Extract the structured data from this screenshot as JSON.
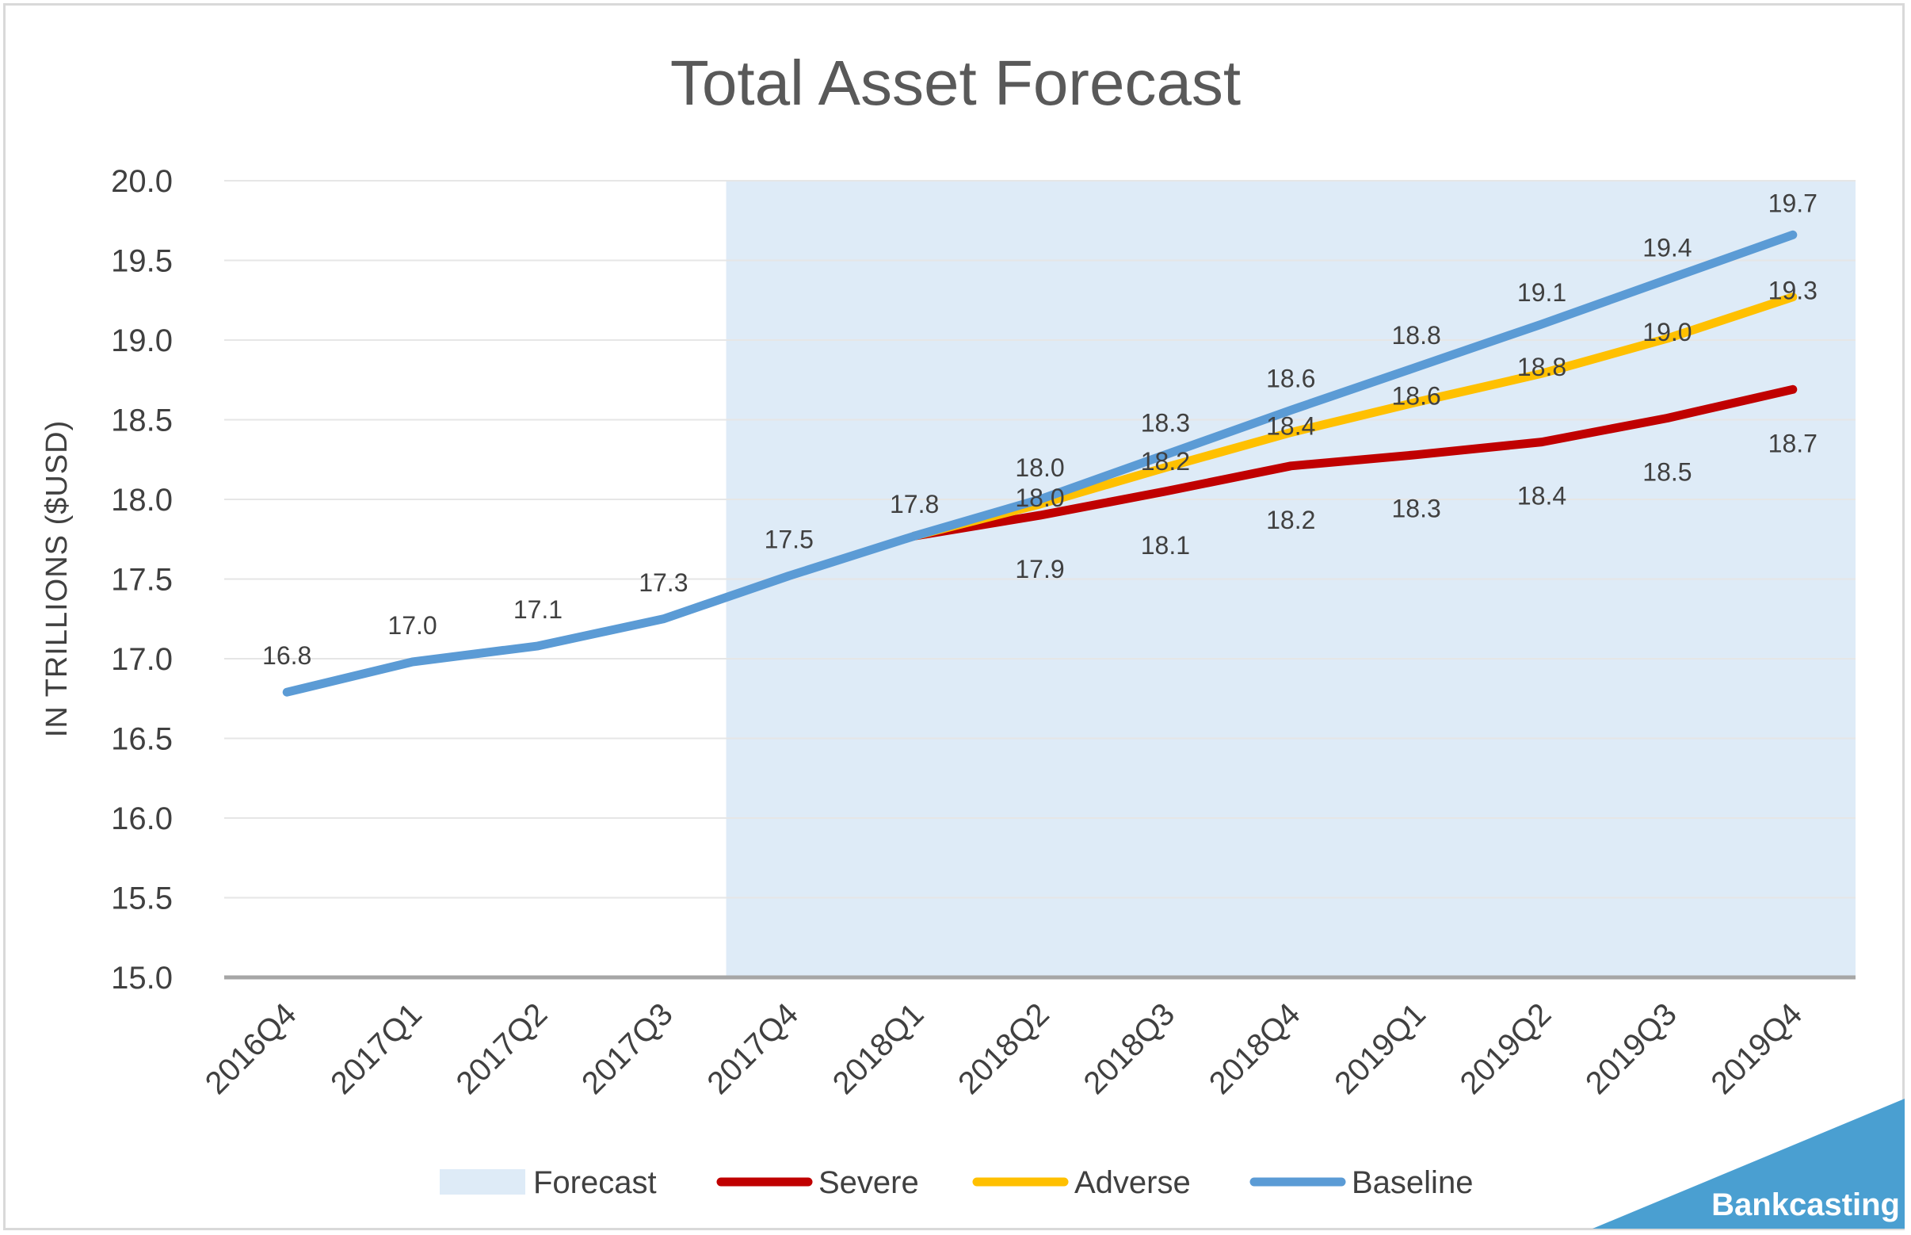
{
  "chart_data": {
    "type": "line",
    "title": "Total Asset Forecast",
    "ylabel": "IN TRILLIONS ($USD)",
    "xlabel": "",
    "ylim": [
      15.0,
      20.0
    ],
    "yticks": [
      "15.0",
      "15.5",
      "16.0",
      "16.5",
      "17.0",
      "17.5",
      "18.0",
      "18.5",
      "19.0",
      "19.5",
      "20.0"
    ],
    "categories": [
      "2016Q4",
      "2017Q1",
      "2017Q2",
      "2017Q3",
      "2017Q4",
      "2018Q1",
      "2018Q2",
      "2018Q3",
      "2018Q4",
      "2019Q1",
      "2019Q2",
      "2019Q3",
      "2019Q4"
    ],
    "grid": true,
    "legend_position": "bottom",
    "forecast_region": {
      "label": "Forecast",
      "start": "2017Q4",
      "end": "2019Q4",
      "color": "#deebf7"
    },
    "series": [
      {
        "name": "Severe",
        "color": "#c00000",
        "values": [
          null,
          null,
          null,
          null,
          null,
          17.77,
          17.9,
          18.05,
          18.21,
          18.28,
          18.36,
          18.51,
          18.69
        ],
        "labels": [
          "",
          "",
          "",
          "",
          "",
          "",
          "17.9",
          "18.1",
          "18.2",
          "18.3",
          "18.4",
          "18.5",
          "18.7"
        ]
      },
      {
        "name": "Adverse",
        "color": "#ffc000",
        "values": [
          null,
          null,
          null,
          null,
          null,
          17.77,
          17.97,
          18.2,
          18.42,
          18.61,
          18.79,
          19.01,
          19.27
        ],
        "labels": [
          "",
          "",
          "",
          "",
          "",
          "",
          "18.0",
          "18.2",
          "18.4",
          "18.6",
          "18.8",
          "19.0",
          "19.3"
        ]
      },
      {
        "name": "Baseline",
        "color": "#5b9bd5",
        "values": [
          16.79,
          16.98,
          17.08,
          17.25,
          17.52,
          17.77,
          18.0,
          18.28,
          18.56,
          18.83,
          19.1,
          19.38,
          19.66
        ],
        "labels": [
          "16.8",
          "17.0",
          "17.1",
          "17.3",
          "17.5",
          "17.8",
          "18.0",
          "18.3",
          "18.6",
          "18.8",
          "19.1",
          "19.4",
          "19.7"
        ]
      }
    ]
  },
  "watermark": {
    "text": "Bankcasting",
    "color": "#4a9fd1"
  }
}
